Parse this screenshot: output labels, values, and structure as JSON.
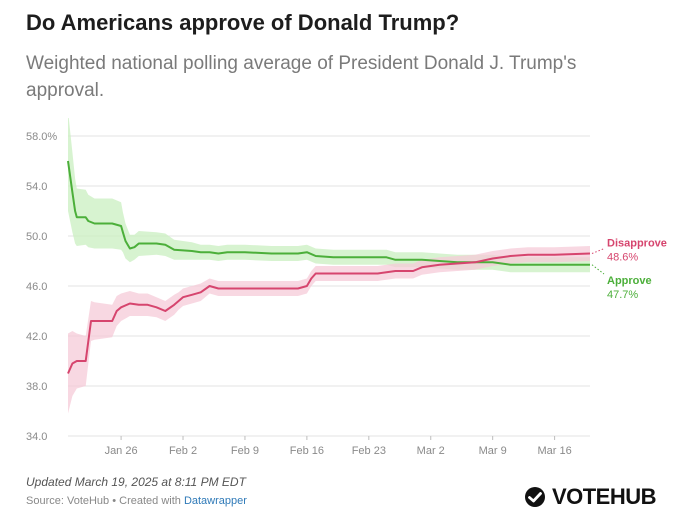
{
  "header": {
    "title": "Do Americans approve of Donald Trump?",
    "subtitle": "Weighted national polling average of President Donald J. Trump's approval."
  },
  "footer": {
    "updated": "Updated March 19, 2025 at 8:11 PM EDT",
    "source_prefix": "Source: VoteHub • Created with ",
    "source_link": "Datawrapper",
    "brand": "VOTEHUB"
  },
  "colors": {
    "approve": "#4caf3a",
    "approve_band": "#c9efc0",
    "disapprove": "#d6456e",
    "disapprove_band": "#f6cbd8",
    "grid": "#e3e3e3"
  },
  "chart_data": {
    "type": "line",
    "title": "Do Americans approve of Donald Trump?",
    "subtitle": "Weighted national polling average of President Donald J. Trump's approval.",
    "x_unit": "day (0 = Jan 20, 2025)",
    "xlim": [
      0,
      59
    ],
    "ylim": [
      34,
      58
    ],
    "y_ticks": [
      {
        "value": 58,
        "label": "58.0%"
      },
      {
        "value": 54,
        "label": "54.0"
      },
      {
        "value": 50,
        "label": "50.0"
      },
      {
        "value": 46,
        "label": "46.0"
      },
      {
        "value": 42,
        "label": "42.0"
      },
      {
        "value": 38,
        "label": "38.0"
      },
      {
        "value": 34,
        "label": "34.0"
      }
    ],
    "x_ticks": [
      {
        "value": 6,
        "label": "Jan 26"
      },
      {
        "value": 13,
        "label": "Feb 2"
      },
      {
        "value": 20,
        "label": "Feb 9"
      },
      {
        "value": 27,
        "label": "Feb 16"
      },
      {
        "value": 34,
        "label": "Feb 23"
      },
      {
        "value": 41,
        "label": "Mar 2"
      },
      {
        "value": 48,
        "label": "Mar 9"
      },
      {
        "value": 55,
        "label": "Mar 16"
      }
    ],
    "series": [
      {
        "name": "Approve",
        "end_label": "Approve",
        "end_value_label": "47.7%",
        "x": [
          0,
          0.5,
          0.8,
          1,
          2,
          2.3,
          3,
          5,
          6,
          6.2,
          6.5,
          7,
          7.5,
          8,
          10,
          11,
          12,
          14,
          15,
          16,
          17,
          18,
          20,
          23,
          26,
          27,
          28,
          30,
          33,
          36,
          37,
          40,
          42,
          44,
          46,
          48,
          50,
          52,
          56,
          59
        ],
        "values": [
          56.0,
          53.5,
          52.0,
          51.5,
          51.5,
          51.2,
          51.0,
          51.0,
          50.8,
          50.3,
          49.6,
          49.0,
          49.1,
          49.4,
          49.4,
          49.3,
          48.9,
          48.8,
          48.7,
          48.7,
          48.6,
          48.7,
          48.7,
          48.6,
          48.6,
          48.7,
          48.4,
          48.3,
          48.3,
          48.3,
          48.1,
          48.1,
          48.0,
          47.9,
          47.9,
          47.9,
          47.7,
          47.7,
          47.7,
          47.7
        ],
        "band_half_width": [
          4.0,
          3.2,
          2.6,
          2.3,
          2.2,
          2.1,
          2.0,
          2.0,
          1.9,
          1.6,
          1.4,
          1.1,
          1.0,
          1.0,
          0.9,
          0.9,
          0.8,
          0.7,
          0.6,
          0.6,
          0.6,
          0.6,
          0.6,
          0.6,
          0.6,
          0.6,
          0.6,
          0.6,
          0.6,
          0.6,
          0.6,
          0.6,
          0.6,
          0.6,
          0.6,
          0.6,
          0.6,
          0.6,
          0.6,
          0.6
        ]
      },
      {
        "name": "Disapprove",
        "end_label": "Disapprove",
        "end_value_label": "48.6%",
        "x": [
          0,
          0.5,
          1,
          2,
          2.6,
          3,
          4,
          5,
          5.5,
          6,
          7,
          8,
          9,
          10,
          11,
          12,
          12.5,
          13,
          14,
          15,
          16,
          17,
          18,
          19,
          20,
          23,
          26,
          27,
          27.5,
          28,
          30,
          33,
          35,
          36,
          37,
          39,
          40,
          42,
          44,
          46,
          48,
          50,
          52,
          55,
          59
        ],
        "values": [
          39.0,
          39.8,
          40.0,
          40.0,
          43.2,
          43.2,
          43.2,
          43.2,
          44.0,
          44.3,
          44.6,
          44.5,
          44.5,
          44.3,
          44.0,
          44.5,
          44.8,
          45.1,
          45.3,
          45.5,
          46.0,
          45.8,
          45.8,
          45.8,
          45.8,
          45.8,
          45.8,
          46.0,
          46.6,
          47.0,
          47.0,
          47.0,
          47.0,
          47.1,
          47.2,
          47.2,
          47.5,
          47.7,
          47.8,
          47.9,
          48.2,
          48.4,
          48.5,
          48.5,
          48.6
        ],
        "band_half_width": [
          3.2,
          2.6,
          2.2,
          2.0,
          1.6,
          1.5,
          1.4,
          1.3,
          1.2,
          1.1,
          1.0,
          0.9,
          0.9,
          0.8,
          0.8,
          0.8,
          0.7,
          0.7,
          0.7,
          0.7,
          0.6,
          0.6,
          0.6,
          0.6,
          0.6,
          0.6,
          0.6,
          0.6,
          0.6,
          0.6,
          0.6,
          0.6,
          0.6,
          0.6,
          0.6,
          0.6,
          0.6,
          0.6,
          0.6,
          0.6,
          0.6,
          0.6,
          0.6,
          0.6,
          0.6
        ]
      }
    ],
    "xlabel": "",
    "ylabel": "",
    "grid": true
  }
}
